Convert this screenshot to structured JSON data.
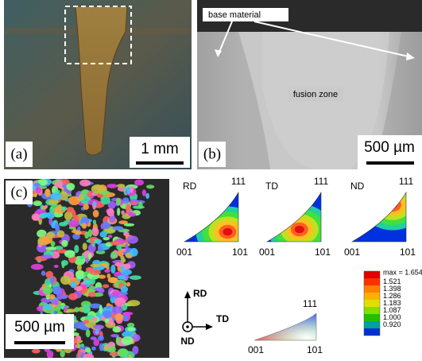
{
  "panels": {
    "a": {
      "label": "(a)",
      "scale_bar": "1 mm"
    },
    "b": {
      "label": "(b)",
      "scale_bar": "500 µm",
      "annotations": [
        "base material",
        "fusion zone"
      ]
    },
    "c": {
      "label": "(c)",
      "scale_bar": "500 µm"
    }
  },
  "pole_figures": [
    {
      "direction": "RD",
      "top": "111",
      "left": "001",
      "right": "101"
    },
    {
      "direction": "TD",
      "top": "111",
      "left": "001",
      "right": "101"
    },
    {
      "direction": "ND",
      "top": "111",
      "left": "001",
      "right": "101"
    }
  ],
  "ipf_key": {
    "top": "111",
    "left": "001",
    "right": "101"
  },
  "axes": [
    "RD",
    "TD",
    "ND"
  ],
  "color_scale": {
    "max_label": "max = 1.654",
    "labels": [
      "1.521",
      "1.398",
      "1.286",
      "1.183",
      "1.087",
      "1.000",
      "0.920"
    ]
  }
}
